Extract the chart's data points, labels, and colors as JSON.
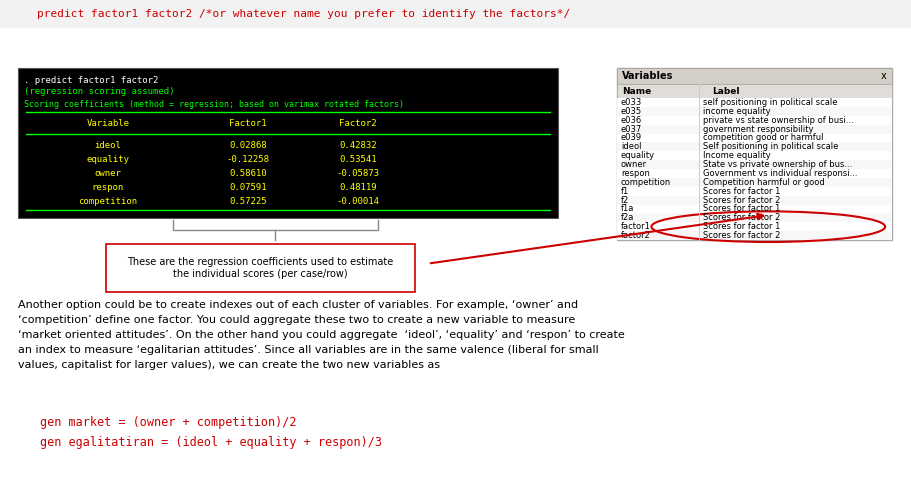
{
  "bg_color": "#ffffff",
  "top_command_text": "    predict factor1 factor2 /*or whatever name you prefer to identify the factors*/",
  "top_command_color": "#cc0000",
  "terminal_bg": "#000000",
  "terminal_line1": ". predict factor1 factor2",
  "terminal_line2": "(regression scoring assumed)",
  "terminal_line3": "Scoring coefficients (method = regression; based on varimax rotated factors)",
  "terminal_header_color": "#00ff00",
  "terminal_table_header": [
    "Variable",
    "Factor1",
    "Factor2"
  ],
  "terminal_table_data": [
    [
      "ideol",
      "0.02868",
      "0.42832"
    ],
    [
      "equality",
      "-0.12258",
      "0.53541"
    ],
    [
      "owner",
      "0.58610",
      "-0.05873"
    ],
    [
      "respon",
      "0.07591",
      "0.48119"
    ],
    [
      "competition",
      "0.57225",
      "-0.00014"
    ]
  ],
  "terminal_yellow": "#ffff00",
  "terminal_green": "#00ff00",
  "annotation_box_text": "These are the regression coefficients used to estimate\nthe individual scores (per case/row)",
  "annotation_box_color": "#cc0000",
  "variables_title": "Variables",
  "variables_data": [
    [
      "e033",
      "self positioning in political scale"
    ],
    [
      "e035",
      "income equality"
    ],
    [
      "e036",
      "private vs state ownership of busi..."
    ],
    [
      "e037",
      "government responsibility"
    ],
    [
      "e039",
      "competition good or harmful"
    ],
    [
      "ideol",
      "Self positioning in political scale"
    ],
    [
      "equality",
      "Income equality"
    ],
    [
      "owner",
      "State vs private ownership of bus..."
    ],
    [
      "respon",
      "Government vs individual responsi..."
    ],
    [
      "competition",
      "Competition harmful or good"
    ],
    [
      "f1",
      "Scores for factor 1"
    ],
    [
      "f2",
      "Scores for factor 2"
    ],
    [
      "f1a",
      "Scores for factor 1"
    ],
    [
      "f2a",
      "Scores for factor 2"
    ],
    [
      "factor1",
      "Scores for factor 1"
    ],
    [
      "factor2",
      "Scores for factor 2"
    ]
  ],
  "body_text_lines": [
    "Another option could be to create indexes out of each cluster of variables. For example, ‘owner’ and",
    "‘competition’ define one factor. You could aggregate these two to create a new variable to measure",
    "‘market oriented attitudes’. On the other hand you could aggregate  ‘ideol’, ‘equality’ and ‘respon’ to create",
    "an index to measure ‘egalitarian attitudes’. Since all variables are in the same valence (liberal for small",
    "values, capitalist for larger values), we can create the two new variables as"
  ],
  "code_line1": "gen market = (owner + competition)/2",
  "code_line2": "gen egalitatiran = (ideol + equality + respon)/3",
  "code_color": "#cc0000"
}
